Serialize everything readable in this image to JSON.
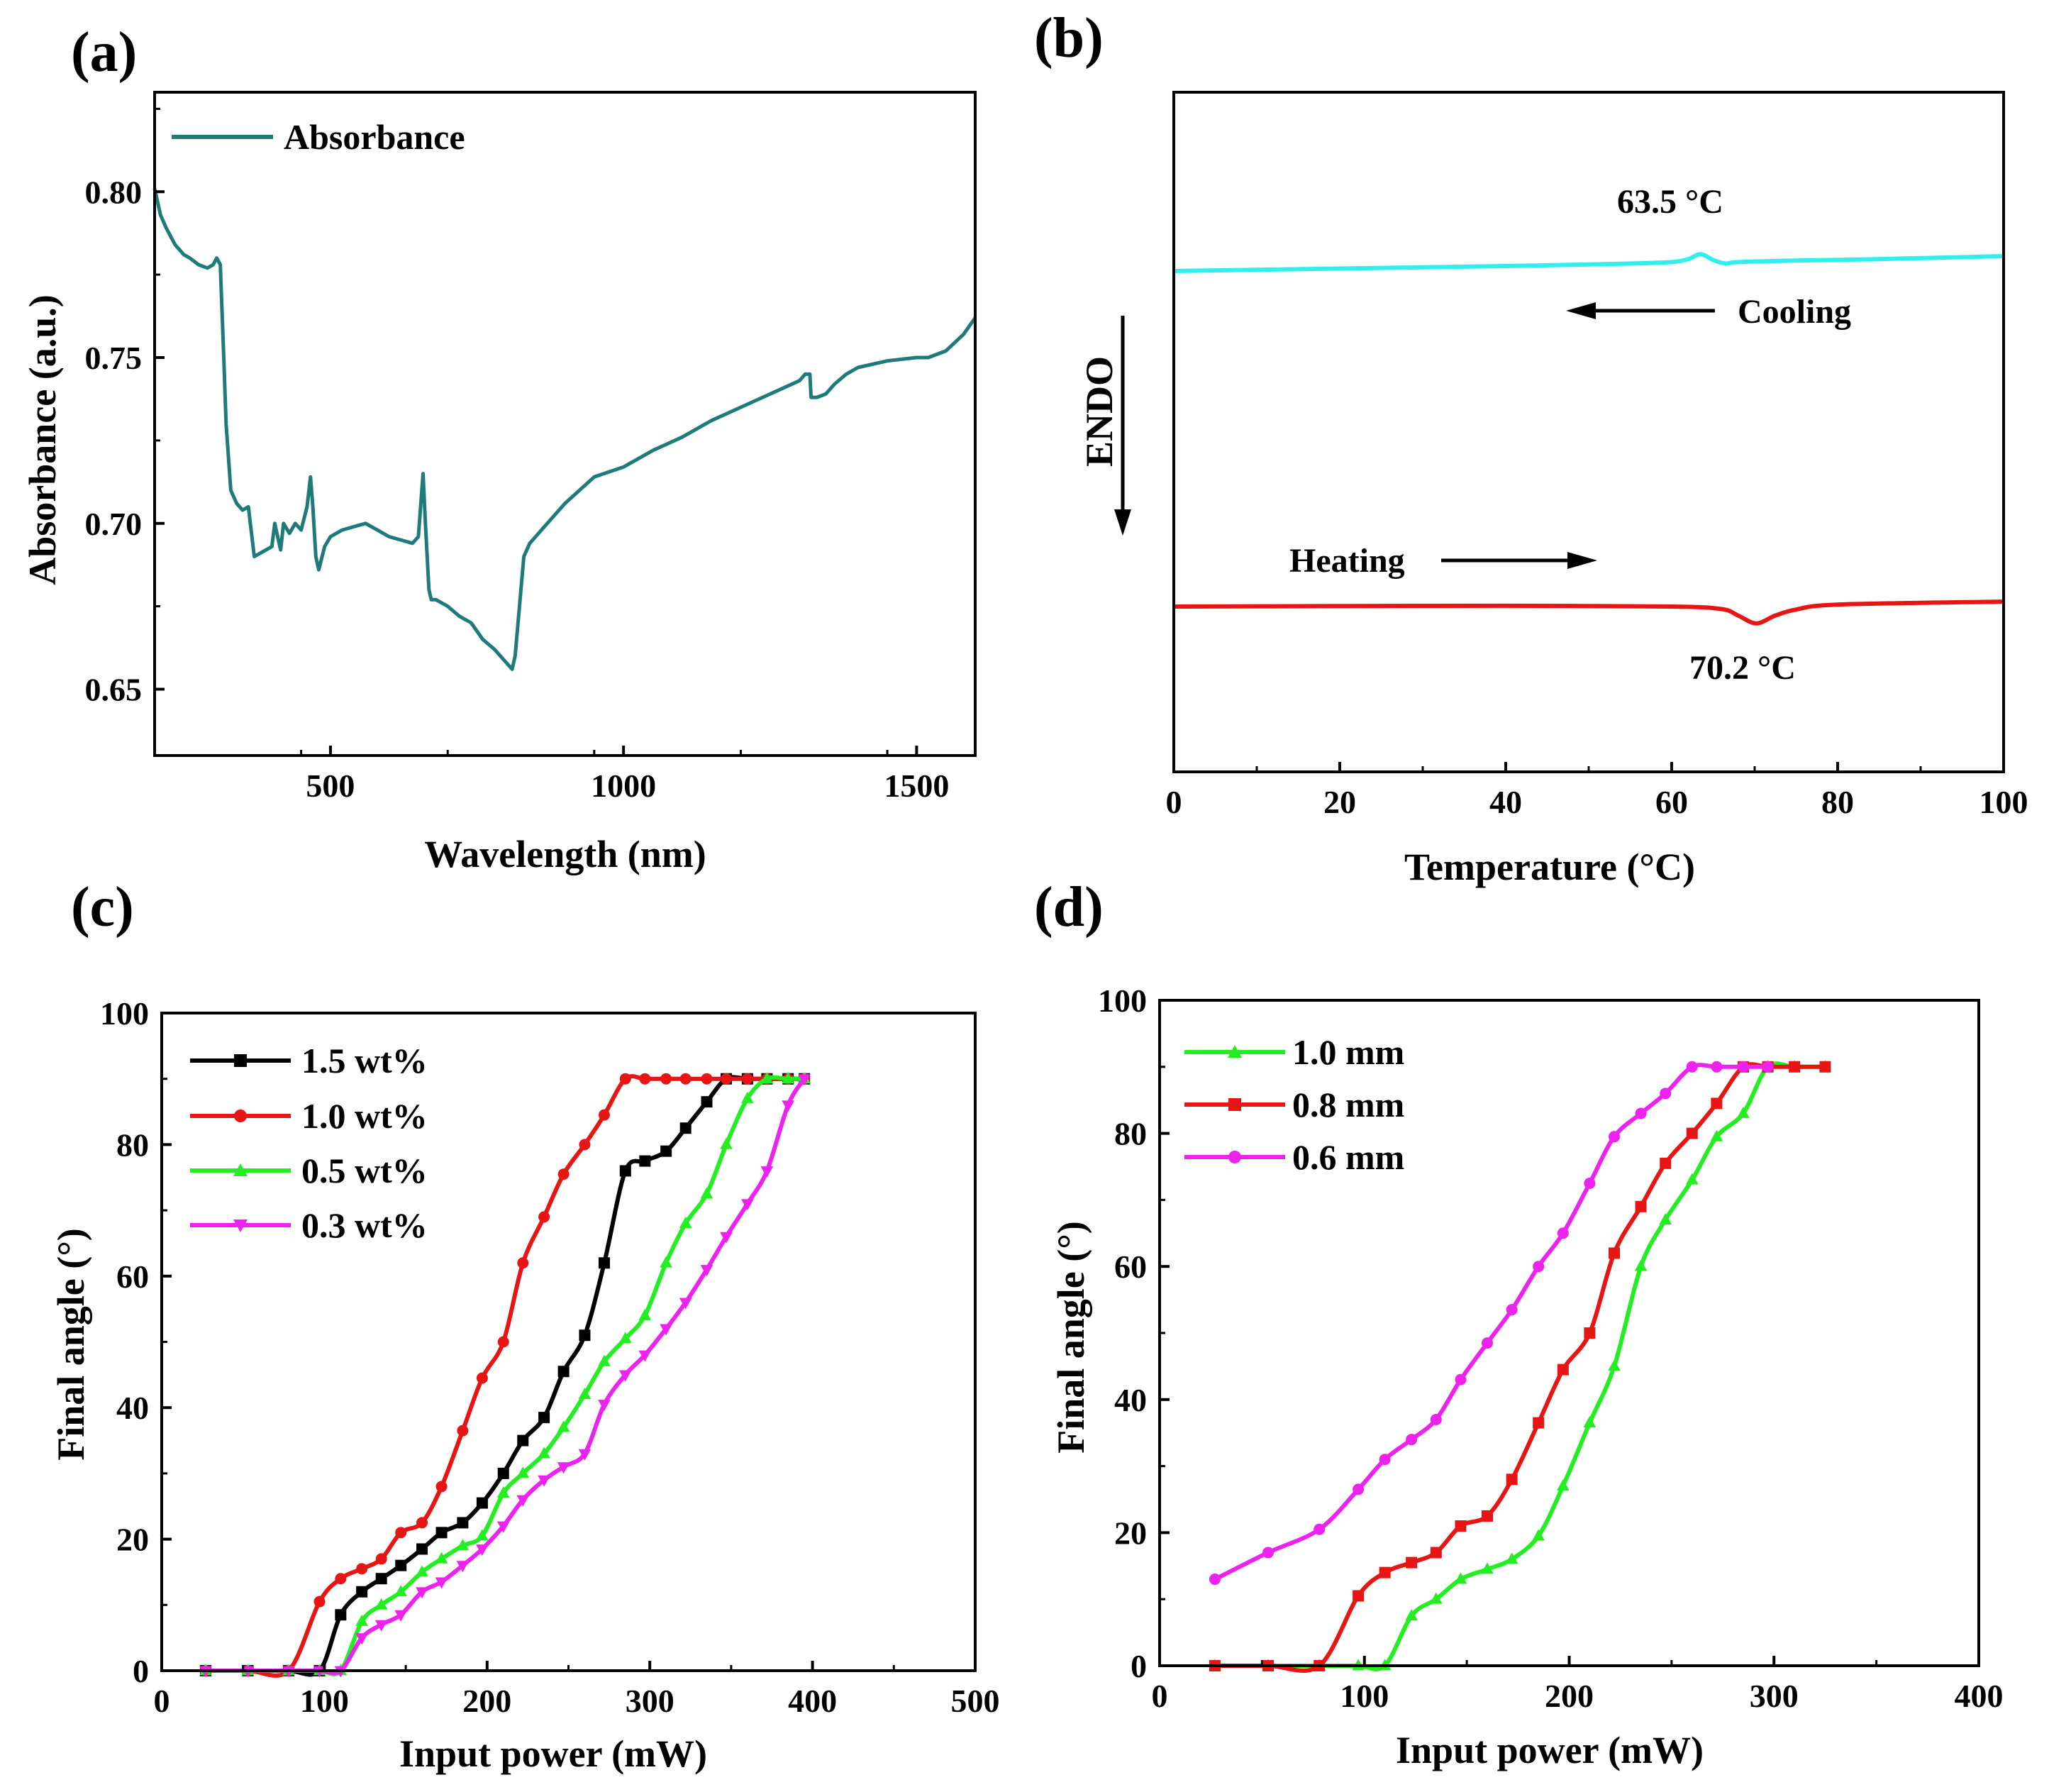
{
  "chart_data": [
    {
      "panel": "(a)",
      "type": "line",
      "xlabel": "Wavelength (nm)",
      "ylabel": "Absorbance (a.u.)",
      "xlim": [
        200,
        1600
      ],
      "ylim": [
        0.63,
        0.83
      ],
      "xticks": [
        500,
        1000,
        1500
      ],
      "xtick_labels": [
        "500",
        "1000",
        "1500"
      ],
      "yticks": [
        0.65,
        0.7,
        0.75,
        0.8
      ],
      "ytick_labels": [
        "0.65",
        "0.70",
        "0.75",
        "0.80"
      ],
      "legend": [
        "Absorbance"
      ],
      "series": [
        {
          "name": "Absorbance",
          "color": "#1f7a7a",
          "x": [
            200,
            210,
            220,
            235,
            250,
            260,
            275,
            290,
            300,
            306,
            312,
            318,
            322,
            330,
            340,
            350,
            360,
            370,
            380,
            390,
            400,
            405,
            410,
            415,
            420,
            430,
            440,
            450,
            460,
            466,
            470,
            475,
            480,
            490,
            500,
            520,
            540,
            560,
            580,
            600,
            620,
            640,
            650,
            658,
            662,
            668,
            672,
            680,
            700,
            720,
            740,
            760,
            780,
            800,
            810,
            815,
            820,
            830,
            840,
            850,
            860,
            880,
            900,
            950,
            1000,
            1050,
            1100,
            1150,
            1200,
            1250,
            1300,
            1310,
            1318,
            1320,
            1330,
            1345,
            1360,
            1380,
            1400,
            1450,
            1500,
            1520,
            1550,
            1580,
            1600
          ],
          "y": [
            0.801,
            0.793,
            0.789,
            0.784,
            0.781,
            0.78,
            0.778,
            0.777,
            0.778,
            0.78,
            0.778,
            0.75,
            0.73,
            0.71,
            0.706,
            0.704,
            0.705,
            0.69,
            0.691,
            0.692,
            0.693,
            0.7,
            0.696,
            0.692,
            0.7,
            0.697,
            0.7,
            0.698,
            0.705,
            0.714,
            0.705,
            0.69,
            0.686,
            0.693,
            0.696,
            0.698,
            0.699,
            0.7,
            0.698,
            0.696,
            0.695,
            0.694,
            0.696,
            0.715,
            0.7,
            0.68,
            0.677,
            0.677,
            0.675,
            0.672,
            0.67,
            0.665,
            0.662,
            0.658,
            0.656,
            0.66,
            0.67,
            0.69,
            0.694,
            0.696,
            0.698,
            0.702,
            0.706,
            0.714,
            0.717,
            0.722,
            0.726,
            0.731,
            0.735,
            0.739,
            0.743,
            0.745,
            0.745,
            0.738,
            0.738,
            0.739,
            0.742,
            0.745,
            0.747,
            0.749,
            0.75,
            0.75,
            0.752,
            0.757,
            0.762
          ]
        }
      ]
    },
    {
      "panel": "(b)",
      "type": "line",
      "xlabel": "Temperature (°C)",
      "ylabel": "ENDO",
      "xlim": [
        0,
        100
      ],
      "yticks_shown": false,
      "xticks": [
        0,
        20,
        40,
        60,
        80,
        100
      ],
      "xtick_labels": [
        "0",
        "20",
        "40",
        "60",
        "80",
        "100"
      ],
      "annotations": {
        "cooling_peak": "63.5 °C",
        "heating_peak": "70.2 °C",
        "cooling_label": "Cooling",
        "heating_label": "Heating"
      },
      "series": [
        {
          "name": "Cooling",
          "color": "#33eeee",
          "x": [
            0,
            20,
            40,
            55,
            60,
            62,
            63.5,
            65,
            66.5,
            68,
            75,
            85,
            100
          ],
          "y": [
            0.0,
            0.25,
            0.5,
            0.75,
            0.9,
            1.2,
            1.7,
            1.1,
            0.75,
            0.9,
            1.05,
            1.2,
            1.5
          ]
        },
        {
          "name": "Heating",
          "color": "#e81515",
          "x": [
            0,
            20,
            40,
            60,
            66,
            68,
            70.2,
            72.5,
            75,
            80,
            100
          ],
          "y": [
            0.0,
            0.05,
            0.08,
            0.0,
            -0.25,
            -0.9,
            -1.7,
            -0.9,
            -0.3,
            0.2,
            0.5
          ]
        }
      ]
    },
    {
      "panel": "(c)",
      "type": "line",
      "xlabel": "Input power (mW)",
      "ylabel": "Final angle (°)",
      "xlim": [
        0,
        500
      ],
      "ylim": [
        0,
        100
      ],
      "xticks": [
        0,
        100,
        200,
        300,
        400,
        500
      ],
      "xtick_labels": [
        "0",
        "100",
        "200",
        "300",
        "400",
        "500"
      ],
      "yticks": [
        0,
        20,
        40,
        60,
        80,
        100
      ],
      "ytick_labels": [
        "0",
        "20",
        "40",
        "60",
        "80",
        "100"
      ],
      "legend": [
        "1.5 wt%",
        "1.0 wt%",
        "0.5 wt%",
        "0.3 wt%"
      ],
      "series": [
        {
          "name": "1.5 wt%",
          "color": "#000000",
          "marker": "square",
          "x": [
            27,
            53,
            78,
            97,
            110,
            123,
            135,
            147,
            160,
            172,
            185,
            197,
            210,
            222,
            235,
            247,
            260,
            272,
            285,
            297,
            310,
            322,
            335,
            347,
            360,
            372,
            385,
            395
          ],
          "y": [
            0,
            0,
            0,
            0,
            8.5,
            12,
            14,
            16,
            18.5,
            21,
            22.5,
            25.5,
            30,
            35,
            38.5,
            45.5,
            51,
            62,
            76,
            77.5,
            79,
            82.5,
            86.5,
            90,
            90,
            90,
            90,
            90
          ]
        },
        {
          "name": "1.0 wt%",
          "color": "#e81515",
          "marker": "circle",
          "x": [
            27,
            53,
            78,
            97,
            110,
            123,
            135,
            147,
            160,
            172,
            185,
            197,
            210,
            222,
            235,
            247,
            260,
            272,
            285,
            297,
            310,
            322,
            335,
            347,
            360,
            372,
            385,
            395
          ],
          "y": [
            0,
            0,
            0,
            10.5,
            14,
            15.5,
            17,
            21,
            22.5,
            28,
            36.5,
            44.5,
            50,
            62,
            69,
            75.5,
            80,
            84.5,
            90,
            90,
            90,
            90,
            90,
            90,
            90,
            90,
            90,
            90
          ]
        },
        {
          "name": "0.5 wt%",
          "color": "#22ee22",
          "marker": "triangle-up",
          "x": [
            27,
            53,
            78,
            97,
            110,
            123,
            135,
            147,
            160,
            172,
            185,
            197,
            210,
            222,
            235,
            247,
            260,
            272,
            285,
            297,
            310,
            322,
            335,
            347,
            360,
            372,
            385,
            395
          ],
          "y": [
            0,
            0,
            0,
            0,
            0,
            7.5,
            10,
            12,
            15,
            17,
            19,
            20.5,
            27,
            30,
            33,
            37,
            42,
            47,
            50.5,
            54,
            62,
            68,
            72.5,
            80,
            87,
            90,
            90,
            90
          ]
        },
        {
          "name": "0.3 wt%",
          "color": "#ee22ee",
          "marker": "triangle-down",
          "x": [
            27,
            53,
            78,
            97,
            110,
            123,
            135,
            147,
            160,
            172,
            185,
            197,
            210,
            222,
            235,
            247,
            260,
            272,
            285,
            297,
            310,
            322,
            335,
            347,
            360,
            372,
            385,
            395
          ],
          "y": [
            0,
            0,
            0,
            0,
            0,
            5,
            7,
            8.5,
            12,
            13.5,
            16,
            18.5,
            22,
            26,
            29,
            31,
            33,
            40.5,
            45,
            48,
            52,
            56,
            61,
            66,
            71,
            76,
            86,
            90
          ]
        }
      ]
    },
    {
      "panel": "(d)",
      "type": "line",
      "xlabel": "Input power (mW)",
      "ylabel": "Final angle (°)",
      "xlim": [
        0,
        400
      ],
      "ylim": [
        0,
        100
      ],
      "xticks": [
        0,
        100,
        200,
        300,
        400
      ],
      "xtick_labels": [
        "0",
        "100",
        "200",
        "300",
        "400"
      ],
      "yticks": [
        0,
        20,
        40,
        60,
        80,
        100
      ],
      "ytick_labels": [
        "0",
        "20",
        "40",
        "60",
        "80",
        "100"
      ],
      "legend": [
        "1.0 mm",
        "0.8 mm",
        "0.6 mm"
      ],
      "series": [
        {
          "name": "1.0 mm",
          "color": "#22ee22",
          "marker": "triangle-up",
          "x": [
            27,
            53,
            78,
            97,
            110,
            123,
            135,
            147,
            160,
            172,
            185,
            197,
            210,
            222,
            235,
            247,
            260,
            272,
            285,
            297,
            310,
            325
          ],
          "y": [
            0,
            0,
            0,
            0,
            0,
            7.5,
            10,
            13,
            14.5,
            16,
            19.5,
            27,
            36.5,
            45,
            60,
            67,
            73,
            79.5,
            83,
            90,
            90,
            90
          ]
        },
        {
          "name": "0.8 mm",
          "color": "#e81515",
          "marker": "square",
          "x": [
            27,
            53,
            78,
            97,
            110,
            123,
            135,
            147,
            160,
            172,
            185,
            197,
            210,
            222,
            235,
            247,
            260,
            272,
            285,
            297,
            310,
            325
          ],
          "y": [
            0,
            0,
            0,
            10.5,
            14,
            15.5,
            17,
            21,
            22.5,
            28,
            36.5,
            44.5,
            50,
            62,
            69,
            75.5,
            80,
            84.5,
            90,
            90,
            90,
            90
          ]
        },
        {
          "name": "0.6 mm",
          "color": "#ee22ee",
          "marker": "circle",
          "x": [
            27,
            53,
            78,
            97,
            110,
            123,
            135,
            147,
            160,
            172,
            185,
            197,
            210,
            222,
            235,
            247,
            260,
            272,
            285,
            297
          ],
          "y": [
            13,
            17,
            20.5,
            26.5,
            31,
            34,
            37,
            43,
            48.5,
            53.5,
            60,
            65,
            72.5,
            79.5,
            83,
            86,
            90,
            90,
            90,
            90
          ]
        }
      ]
    }
  ]
}
